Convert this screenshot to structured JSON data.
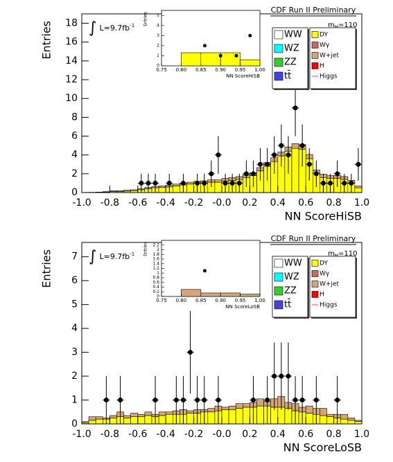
{
  "chart_data": [
    {
      "type": "histogram",
      "x_label": "NN ScoreHiSB",
      "y_label": "Entries",
      "header": "CDF Run II Preliminary",
      "mass_label": [
        "m",
        "H",
        "=110"
      ],
      "lumi_label": [
        "∫",
        "L=9.7fb",
        "-1"
      ],
      "xlim": [
        -1,
        1
      ],
      "xticks": [
        {
          "value": -1,
          "label": "-1.0"
        },
        -0.8,
        -0.6,
        -0.4,
        -0.2,
        {
          "value": 0,
          "label": "-0.0"
        },
        0.2,
        0.4,
        0.6,
        0.8,
        {
          "value": 1,
          "label": "1.0"
        }
      ],
      "ylim": [
        0,
        19
      ],
      "yticks": [
        0,
        2,
        4,
        6,
        8,
        10,
        12,
        14,
        16,
        18
      ],
      "bins": [
        -1,
        -0.95,
        -0.9,
        -0.85,
        -0.8,
        -0.75,
        -0.7,
        -0.65,
        -0.6,
        -0.55,
        -0.5,
        -0.45,
        -0.4,
        -0.35,
        -0.3,
        -0.25,
        -0.2,
        -0.15,
        -0.1,
        -0.05,
        0,
        0.05,
        0.1,
        0.15,
        0.2,
        0.25,
        0.3,
        0.35,
        0.4,
        0.45,
        0.5,
        0.55,
        0.6,
        0.65,
        0.7,
        0.75,
        0.8,
        0.85,
        0.9,
        0.95,
        1
      ],
      "series": [
        {
          "name": "WW",
          "color": "#ffffff"
        },
        {
          "name": "WZ",
          "color": "#00ffff"
        },
        {
          "name": "ZZ",
          "color": "#33cc33"
        },
        {
          "name": "tt̄",
          "color": "#4444dd"
        },
        {
          "name": "DY",
          "color": "#ffff00",
          "values": [
            0,
            0,
            0,
            0.05,
            0.1,
            0.1,
            0.15,
            0.2,
            0.3,
            0.4,
            0.5,
            0.55,
            0.6,
            0.7,
            0.8,
            0.9,
            1.0,
            1.0,
            1.1,
            1.1,
            1.2,
            1.3,
            1.4,
            1.6,
            1.8,
            2.3,
            2.8,
            3.3,
            3.9,
            4.4,
            4.7,
            4.6,
            3.6,
            2.0,
            1.6,
            1.5,
            1.5,
            1.4,
            1.0,
            0.5
          ]
        },
        {
          "name": "Wγ",
          "color": "#cc6666"
        },
        {
          "name": "W+jet",
          "color": "#d2a679",
          "values": [
            0.02,
            0.03,
            0.05,
            0.05,
            0.1,
            0.1,
            0.1,
            0.1,
            0.1,
            0.15,
            0.15,
            0.15,
            0.2,
            0.2,
            0.2,
            0.2,
            0.2,
            0.25,
            0.25,
            0.25,
            0.3,
            0.3,
            0.3,
            0.3,
            0.3,
            0.35,
            0.4,
            0.4,
            0.4,
            0.45,
            0.5,
            0.5,
            0.45,
            0.4,
            0.35,
            0.3,
            0.3,
            0.3,
            0.3,
            0.2
          ]
        },
        {
          "name": "H",
          "color": "#ff0000"
        },
        {
          "name": "Higgs",
          "color": "#ff3399",
          "style": "line"
        }
      ],
      "data": {
        "x": [
          -0.575,
          -0.525,
          -0.475,
          -0.375,
          -0.275,
          -0.175,
          -0.125,
          -0.075,
          -0.025,
          0.025,
          0.075,
          0.125,
          0.175,
          0.225,
          0.275,
          0.325,
          0.375,
          0.425,
          0.475,
          0.525,
          0.575,
          0.625,
          0.675,
          0.725,
          0.775,
          0.825,
          0.875,
          0.925,
          0.975
        ],
        "values": [
          1,
          1,
          1,
          1,
          1,
          1,
          1,
          2,
          4,
          1,
          1,
          1,
          2,
          2,
          3,
          3,
          4,
          5,
          4,
          9,
          5,
          3,
          2,
          1,
          1,
          2,
          1,
          1,
          3
        ],
        "errors": [
          1,
          1,
          1,
          1,
          1,
          1,
          1,
          1.41,
          2,
          1,
          1,
          1,
          1.41,
          1.41,
          1.73,
          1.73,
          2,
          2.24,
          2,
          3,
          2.24,
          1.73,
          1.41,
          1,
          1,
          1.41,
          1,
          1,
          1.73
        ]
      },
      "inset": {
        "x_label": "NN ScoreHiSB",
        "y_label": "Entries",
        "xlim": [
          0.75,
          1
        ],
        "xticks": [
          0.75,
          {
            "value": 0.8,
            "label": "0.80"
          },
          0.85,
          {
            "value": 0.9,
            "label": "0.90"
          },
          0.95,
          {
            "value": 1,
            "label": "1.00"
          }
        ],
        "ylim": [
          0,
          5.5
        ],
        "yticks": [
          0,
          1,
          2,
          3,
          4,
          5
        ],
        "bins": [
          0.8,
          0.85,
          0.9,
          0.95,
          1
        ],
        "color": "#ffff00",
        "values": [
          1.3,
          1.3,
          1.3,
          0.6
        ],
        "data": {
          "x": [
            0.86,
            0.9,
            0.94,
            0.975
          ],
          "values": [
            2,
            1,
            1,
            3
          ]
        }
      }
    },
    {
      "type": "histogram",
      "x_label": "NN ScoreLoSB",
      "y_label": "Entries",
      "header": "CDF Run II Preliminary",
      "mass_label": [
        "m",
        "H",
        "=110"
      ],
      "lumi_label": [
        "∫",
        "L=9.7fb",
        "-1"
      ],
      "xlim": [
        -1,
        1
      ],
      "xticks": [
        {
          "value": -1,
          "label": "-1.0"
        },
        -0.8,
        -0.6,
        -0.4,
        -0.2,
        {
          "value": 0,
          "label": "-0.0"
        },
        0.2,
        0.4,
        0.6,
        0.8,
        {
          "value": 1,
          "label": "1.0"
        }
      ],
      "ylim": [
        0,
        7.6
      ],
      "yticks": [
        0,
        1,
        2,
        3,
        4,
        5,
        6,
        7
      ],
      "bins": [
        -1,
        -0.95,
        -0.9,
        -0.85,
        -0.8,
        -0.75,
        -0.7,
        -0.65,
        -0.6,
        -0.55,
        -0.5,
        -0.45,
        -0.4,
        -0.35,
        -0.3,
        -0.25,
        -0.2,
        -0.15,
        -0.1,
        -0.05,
        0,
        0.05,
        0.1,
        0.15,
        0.2,
        0.25,
        0.3,
        0.35,
        0.4,
        0.45,
        0.5,
        0.55,
        0.6,
        0.65,
        0.7,
        0.75,
        0.8,
        0.85,
        0.9,
        0.95,
        1
      ],
      "series": [
        {
          "name": "WW",
          "color": "#ffffff"
        },
        {
          "name": "WZ",
          "color": "#00ffff"
        },
        {
          "name": "ZZ",
          "color": "#33cc33"
        },
        {
          "name": "tt̄",
          "color": "#4444dd"
        },
        {
          "name": "DY",
          "color": "#ffff00",
          "values": [
            0.05,
            0.15,
            0.2,
            0.2,
            0.25,
            0.3,
            0.25,
            0.3,
            0.3,
            0.35,
            0.3,
            0.35,
            0.4,
            0.4,
            0.4,
            0.45,
            0.45,
            0.5,
            0.5,
            0.55,
            0.6,
            0.6,
            0.65,
            0.7,
            0.7,
            0.75,
            0.75,
            0.7,
            0.7,
            0.65,
            0.55,
            0.5,
            0.45,
            0.4,
            0.35,
            0.3,
            0.25,
            0.2,
            0.15,
            0.1
          ]
        },
        {
          "name": "Wγ",
          "color": "#cc6666"
        },
        {
          "name": "W+jet",
          "color": "#d2a679",
          "values": [
            0.05,
            0.15,
            0.1,
            0.05,
            0.1,
            0.2,
            0.1,
            0.15,
            0.1,
            0.15,
            0.1,
            0.15,
            0.1,
            0.15,
            0.2,
            0.1,
            0.15,
            0.1,
            0.15,
            0.2,
            0.1,
            0.15,
            0.2,
            0.15,
            0.2,
            0.3,
            0.2,
            0.35,
            0.45,
            0.25,
            0.3,
            0.2,
            0.3,
            0.25,
            0.3,
            0.1,
            0.15,
            0.2,
            0.1,
            0.05
          ]
        },
        {
          "name": "H",
          "color": "#ff0000"
        },
        {
          "name": "Higgs",
          "color": "#ff3399",
          "style": "line"
        }
      ],
      "data": {
        "x": [
          -0.825,
          -0.725,
          -0.475,
          -0.325,
          -0.275,
          -0.225,
          -0.175,
          -0.125,
          -0.025,
          0.225,
          0.325,
          0.375,
          0.425,
          0.475,
          0.525,
          0.575,
          0.675,
          0.825
        ],
        "values": [
          1,
          1,
          1,
          1,
          1,
          3,
          1,
          1,
          1,
          1,
          1,
          2,
          2,
          2,
          1,
          1,
          1,
          1
        ],
        "errors": [
          1,
          1,
          1,
          1,
          1,
          1.73,
          1,
          1,
          1,
          1,
          1,
          1.41,
          1.41,
          1.41,
          1,
          1,
          1,
          1
        ]
      },
      "inset": {
        "x_label": "NN ScoreLoSB",
        "y_label": "Entries",
        "xlim": [
          0.75,
          1
        ],
        "xticks": [
          0.75,
          {
            "value": 0.8,
            "label": "0.80"
          },
          0.85,
          {
            "value": 0.9,
            "label": "0.90"
          },
          0.95,
          {
            "value": 1,
            "label": "1.00"
          }
        ],
        "ylim": [
          0,
          2.4
        ],
        "yticks": [
          0,
          0.2,
          0.4,
          0.6,
          0.8,
          1,
          1.2,
          1.4,
          1.6,
          1.8,
          2,
          2.2
        ],
        "bins": [
          0.8,
          0.85,
          0.9,
          0.95,
          1
        ],
        "color": "#d2a679",
        "values": [
          0.3,
          0.15,
          0.15,
          0.1
        ],
        "data": {
          "x": [
            0.86
          ],
          "values": [
            1.1
          ]
        }
      }
    }
  ]
}
